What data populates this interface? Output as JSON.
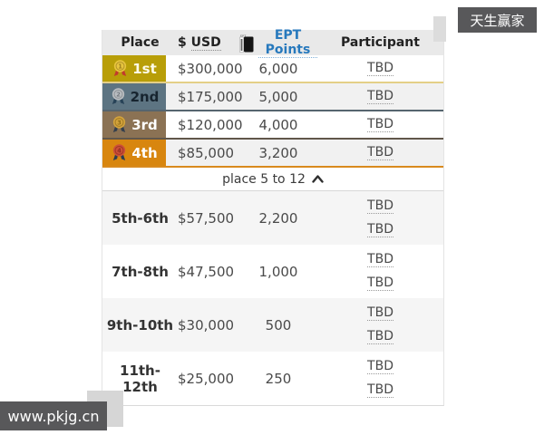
{
  "watermarks": {
    "top_right": "天生赢家",
    "bottom_left": "www.pkjg.cn"
  },
  "table": {
    "headers": {
      "place": "Place",
      "usd_symbol": "$",
      "usd_label": "USD",
      "points": "EPT Points",
      "participant": "Participant"
    },
    "expander_label": "place 5 to 12",
    "podium_rows": [
      {
        "place": "1st",
        "medal_number": "1",
        "usd": "$300,000",
        "points": "6,000",
        "participant": "TBD",
        "colors": {
          "cell-bg": "#b89e08",
          "cell-text": "#fdfbe8",
          "sep": "#e4cf87",
          "coin": "#e7c53e",
          "coin-ring": "#b5942a",
          "coin-num": "#9c7d1d",
          "ribbon": "#c23b2e"
        }
      },
      {
        "place": "2nd",
        "medal_number": "2",
        "usd": "$175,000",
        "points": "5,000",
        "participant": "TBD",
        "colors": {
          "cell-bg": "#5d7482",
          "cell-text": "#17242f",
          "sep": "#56656f",
          "coin": "#b9bdc1",
          "coin-ring": "#8f9499",
          "coin-num": "#74797f",
          "ribbon": "#274257"
        }
      },
      {
        "place": "3rd",
        "medal_number": "3",
        "usd": "$120,000",
        "points": "4,000",
        "participant": "TBD",
        "colors": {
          "cell-bg": "#8b7254",
          "cell-text": "#ffffff",
          "sep": "#60564a",
          "coin": "#d3a33c",
          "coin-ring": "#a47c24",
          "coin-num": "#8f6c19",
          "ribbon": "#333f4d"
        }
      },
      {
        "place": "4th",
        "medal_number": "4",
        "usd": "$85,000",
        "points": "3,200",
        "participant": "TBD",
        "colors": {
          "cell-bg": "#d8860f",
          "cell-text": "#ffffff",
          "sep": "#d98a1e",
          "coin": "#cd4f38",
          "coin-ring": "#a03826",
          "coin-num": "#8f2f1f",
          "ribbon": "#2c3d52"
        }
      }
    ],
    "group_rows": [
      {
        "place": "5th-6th",
        "usd": "$57,500",
        "points": "2,200",
        "participants": [
          "TBD",
          "TBD"
        ]
      },
      {
        "place": "7th-8th",
        "usd": "$47,500",
        "points": "1,000",
        "participants": [
          "TBD",
          "TBD"
        ]
      },
      {
        "place": "9th-10th",
        "usd": "$30,000",
        "points": "500",
        "participants": [
          "TBD",
          "TBD"
        ]
      },
      {
        "place": "11th-12th",
        "usd": "$25,000",
        "points": "250",
        "participants": [
          "TBD",
          "TBD"
        ]
      }
    ],
    "colors": {
      "header_bg": "#e9e9e9",
      "link_blue": "#2779bd",
      "row_alt": "#f2f2f2",
      "watermark_bg": "#58585a"
    }
  }
}
